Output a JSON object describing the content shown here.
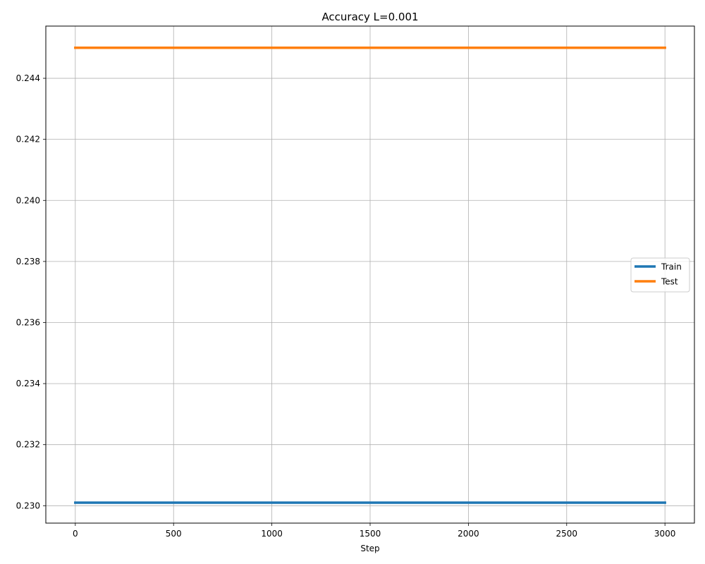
{
  "chart_data": {
    "type": "line",
    "title": "Accuracy L=0.001",
    "xlabel": "Step",
    "ylabel": "",
    "xlim": [
      -150,
      3150
    ],
    "ylim": [
      0.22943,
      0.24571
    ],
    "xticks": [
      0,
      500,
      1000,
      1500,
      2000,
      2500,
      3000
    ],
    "yticks": [
      0.23,
      0.232,
      0.234,
      0.236,
      0.238,
      0.24,
      0.242,
      0.244
    ],
    "ytick_labels": [
      "0.230",
      "0.232",
      "0.234",
      "0.236",
      "0.238",
      "0.240",
      "0.242",
      "0.244"
    ],
    "grid": true,
    "legend_position": "center-right",
    "series": [
      {
        "name": "Train",
        "color": "#1f77b4",
        "x": [
          0,
          500,
          1000,
          1500,
          2000,
          2500,
          3000
        ],
        "y": [
          0.2301,
          0.2301,
          0.2301,
          0.2301,
          0.2301,
          0.2301,
          0.2301
        ]
      },
      {
        "name": "Test",
        "color": "#ff7f0e",
        "x": [
          0,
          500,
          1000,
          1500,
          2000,
          2500,
          3000
        ],
        "y": [
          0.245,
          0.245,
          0.245,
          0.245,
          0.245,
          0.245,
          0.245
        ]
      }
    ]
  }
}
